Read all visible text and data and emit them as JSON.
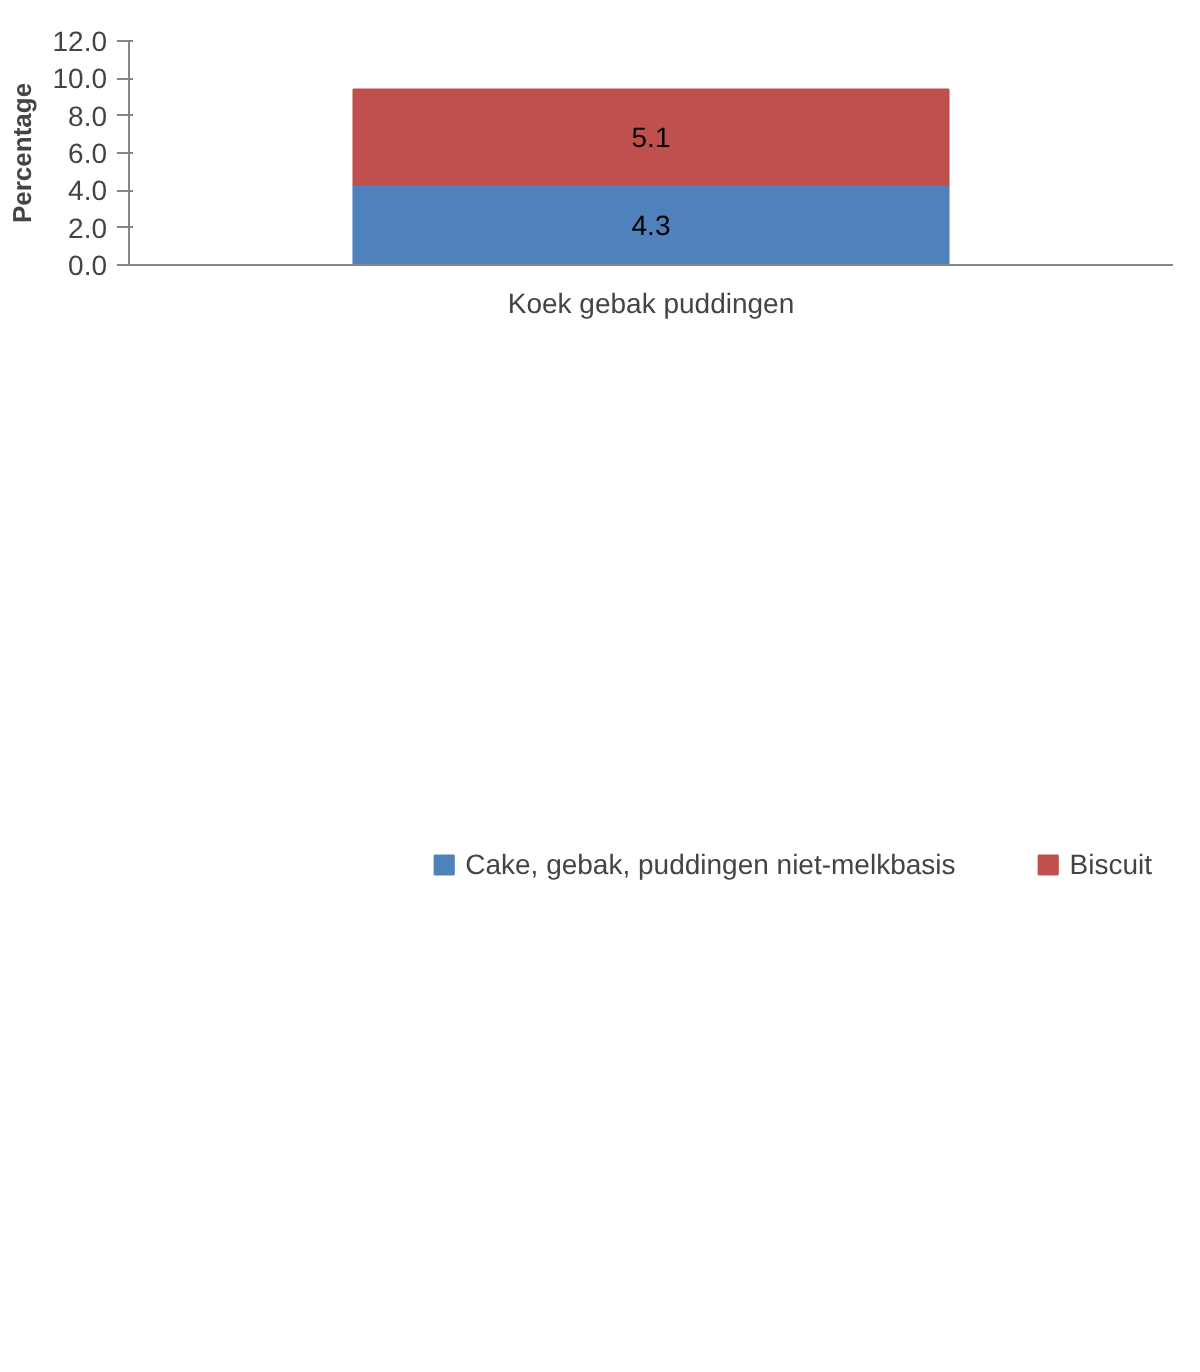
{
  "chart_data": {
    "type": "bar",
    "stacked": true,
    "categories": [
      "Koek gebak puddingen"
    ],
    "ylabel": "Percentage",
    "series": [
      {
        "name": "Cake, gebak, puddingen niet-melkbasis",
        "color": "#4f81bd",
        "values": [
          4.3
        ]
      },
      {
        "name": "Biscuit",
        "color": "#c0504d",
        "values": [
          5.1
        ]
      }
    ],
    "ylim": [
      0,
      12
    ],
    "yticks": [
      {
        "value": 0,
        "label": "0.0"
      },
      {
        "value": 2,
        "label": "2.0"
      },
      {
        "value": 4,
        "label": "4.0"
      },
      {
        "value": 6,
        "label": "6.0"
      },
      {
        "value": 8,
        "label": "8.0"
      },
      {
        "value": 10,
        "label": "10.0"
      },
      {
        "value": 12,
        "label": "12.0"
      }
    ],
    "data_labels": true,
    "legend": "bottom",
    "grid": false
  }
}
